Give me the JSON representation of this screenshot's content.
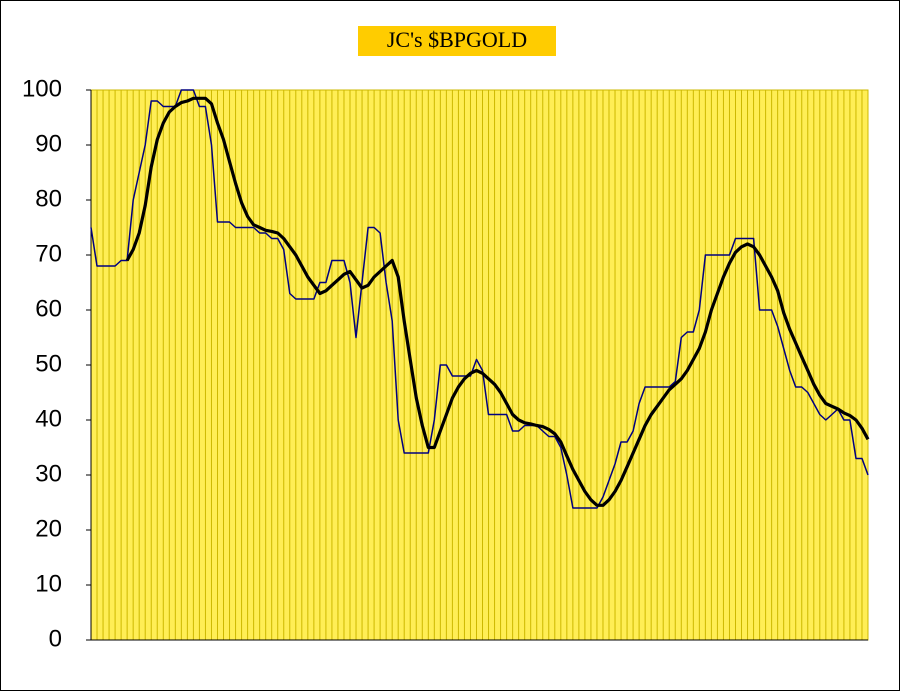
{
  "chart_data": {
    "type": "line",
    "title": "JC's $BPGOLD",
    "categories": [
      null,
      null,
      null,
      null,
      null,
      null,
      null,
      null,
      null,
      null,
      null,
      null,
      null,
      null,
      null,
      null,
      null,
      null,
      null,
      null,
      null,
      null,
      null,
      null,
      null,
      null,
      null,
      null,
      null,
      null,
      null,
      null,
      null,
      null,
      null,
      null,
      null,
      null,
      null,
      null,
      null,
      null,
      null,
      null,
      null,
      null,
      null,
      null,
      null,
      null,
      null,
      null,
      null,
      null,
      null,
      null,
      null,
      null,
      null,
      null,
      null,
      null,
      null,
      null,
      null,
      null,
      null,
      null,
      null,
      null,
      null,
      null,
      null,
      null,
      null,
      null,
      null,
      null,
      null,
      null,
      null,
      null,
      null,
      null,
      null,
      null,
      null,
      null,
      null,
      null,
      null,
      null,
      null,
      null,
      null,
      null,
      null,
      null,
      null,
      null,
      null,
      null,
      null,
      null,
      null,
      null,
      null,
      null,
      null,
      null,
      null,
      null,
      null,
      null,
      null,
      null,
      null,
      null,
      null,
      null,
      null,
      null,
      null,
      null,
      null,
      null,
      null,
      null,
      null,
      null
    ],
    "series": [
      {
        "color": "#000080",
        "width": 1.5,
        "values": [
          75,
          68,
          68,
          68,
          68,
          69,
          69,
          80,
          85,
          90,
          98,
          98,
          97,
          97,
          97,
          100,
          100,
          100,
          97,
          97,
          90,
          76,
          76,
          76,
          75,
          75,
          75,
          75,
          74,
          74,
          73,
          73,
          71,
          63,
          62,
          62,
          62,
          62,
          65,
          65,
          69,
          69,
          69,
          65,
          55,
          65,
          75,
          75,
          74,
          65,
          58,
          40,
          34,
          34,
          34,
          34,
          34,
          40,
          50,
          50,
          48,
          48,
          48,
          48,
          51,
          49,
          41,
          41,
          41,
          41,
          38,
          38,
          39,
          39,
          39,
          38,
          37,
          37,
          35,
          30,
          24,
          24,
          24,
          24,
          24,
          26,
          29,
          32,
          36,
          36,
          38,
          43,
          46,
          46,
          46,
          46,
          46,
          47,
          55,
          56,
          56,
          60,
          70,
          70,
          70,
          70,
          70,
          73,
          73,
          73,
          73,
          60,
          60,
          60,
          57,
          53,
          49,
          46,
          46,
          45,
          43,
          41,
          40,
          41,
          42,
          40,
          40,
          33,
          33,
          30
        ]
      },
      {
        "color": "#000000",
        "width": 3.2,
        "values": [
          null,
          null,
          null,
          null,
          null,
          null,
          69,
          71,
          74,
          79,
          86,
          91,
          94,
          96,
          97,
          97.7,
          98,
          98.5,
          98.5,
          98.5,
          97.5,
          94,
          91,
          87,
          83,
          79.5,
          77,
          75.5,
          75,
          74.5,
          74.3,
          74,
          73,
          71.5,
          70,
          68,
          66,
          64.5,
          63,
          63.5,
          64.5,
          65.5,
          66.5,
          67,
          65.5,
          64,
          64.5,
          66,
          67,
          68,
          69,
          66,
          58,
          51,
          44,
          39,
          35,
          35,
          38,
          41,
          44,
          46,
          47.5,
          48.5,
          49,
          48.5,
          47.5,
          46.5,
          45,
          43,
          41,
          40,
          39.5,
          39.3,
          39,
          38.8,
          38.3,
          37.5,
          36,
          33.5,
          31,
          29,
          27,
          25.5,
          24.5,
          24.5,
          25.5,
          27,
          29,
          31.5,
          34,
          36.5,
          39,
          41,
          42.5,
          44,
          45.5,
          46.5,
          47.5,
          49,
          51,
          53,
          56,
          60,
          63,
          66,
          68.5,
          70.5,
          71.5,
          72,
          71.5,
          70,
          68,
          66,
          63.5,
          59.5,
          56.5,
          54,
          51.5,
          49,
          46.5,
          44.5,
          43,
          42.5,
          42,
          41.3,
          40.8,
          40,
          38.5,
          36.5
        ]
      }
    ],
    "ylim": [
      0,
      100
    ],
    "yticks": [
      0,
      10,
      20,
      30,
      40,
      50,
      60,
      70,
      80,
      90,
      100
    ],
    "plot_color": "#ffee55",
    "grid_color": "#cdb800",
    "title_color": "#ffcc00",
    "grid": true
  }
}
